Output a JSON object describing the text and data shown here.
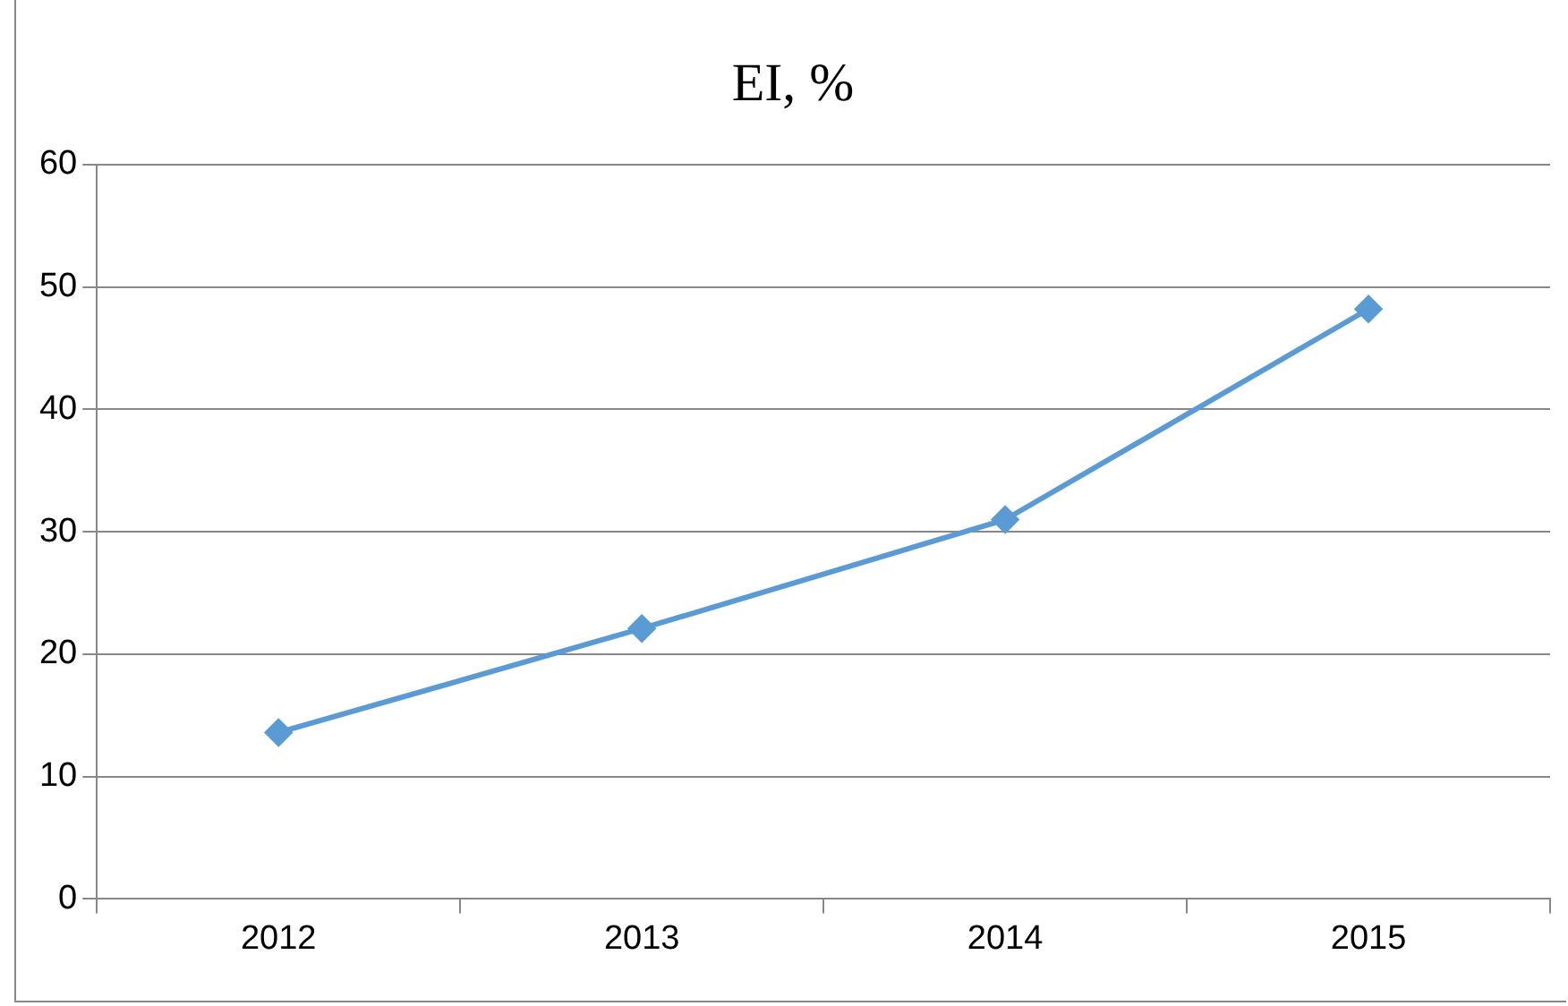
{
  "chart_data": {
    "type": "line",
    "title": "EI, %",
    "categories": [
      "2012",
      "2013",
      "2014",
      "2015"
    ],
    "series": [
      {
        "color": "#5b9bd5",
        "values": [
          13.6,
          22.1,
          31.0,
          48.2
        ]
      }
    ],
    "ylim": [
      0,
      60
    ],
    "yticks": [
      0,
      10,
      20,
      30,
      40,
      50,
      60
    ],
    "grid": "y",
    "legend": false,
    "marker": "diamond",
    "line_style": "solid"
  }
}
